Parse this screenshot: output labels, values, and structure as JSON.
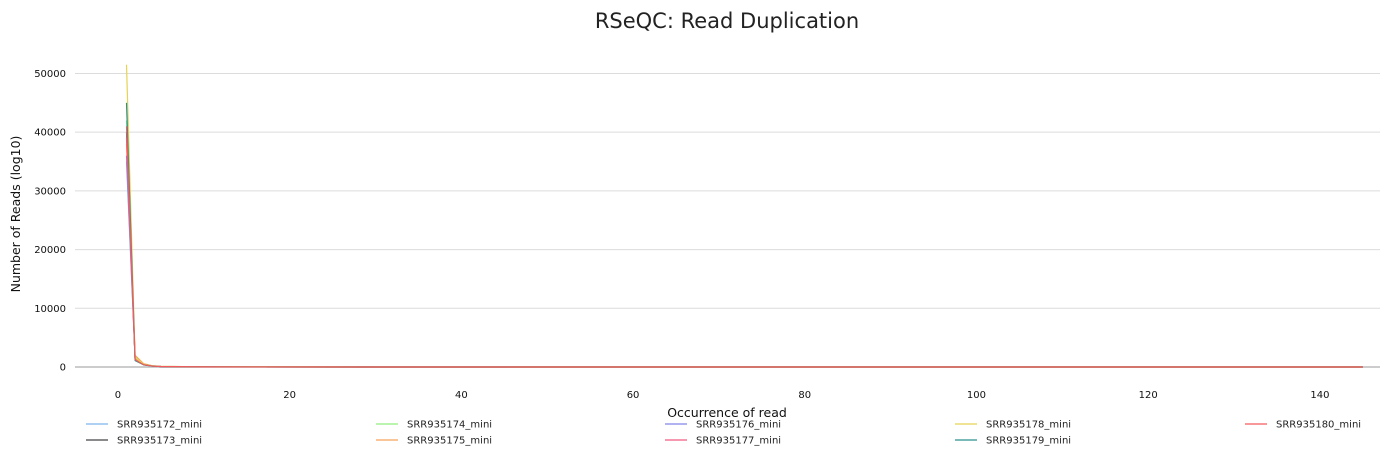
{
  "chart_data": {
    "type": "line",
    "title": "RSeQC: Read Duplication",
    "xlabel": "Occurrence of read",
    "ylabel": "Number of Reads (log10)",
    "xlim": [
      -5,
      147
    ],
    "ylim": [
      0,
      54000
    ],
    "x_ticks": [
      0,
      20,
      40,
      60,
      80,
      100,
      120,
      140
    ],
    "y_ticks": [
      0,
      10000,
      20000,
      30000,
      40000,
      50000
    ],
    "grid": true,
    "legend_position": "bottom",
    "series": [
      {
        "name": "SRR935172_mini",
        "color": "#7cb5ec",
        "x": [
          1,
          2,
          3,
          4,
          5,
          10,
          30,
          60,
          100,
          145
        ],
        "values": [
          35000,
          1500,
          450,
          180,
          90,
          20,
          5,
          2,
          1,
          0
        ]
      },
      {
        "name": "SRR935173_mini",
        "color": "#434348",
        "x": [
          1,
          2,
          3,
          4,
          5,
          10,
          30,
          60,
          100,
          145
        ],
        "values": [
          40000,
          1200,
          380,
          160,
          80,
          18,
          4,
          2,
          1,
          0
        ]
      },
      {
        "name": "SRR935174_mini",
        "color": "#90ed7d",
        "x": [
          1,
          2,
          3,
          4,
          5,
          10,
          30,
          60,
          100,
          145
        ],
        "values": [
          42000,
          1800,
          500,
          200,
          100,
          22,
          5,
          2,
          1,
          0
        ]
      },
      {
        "name": "SRR935175_mini",
        "color": "#f7a35c",
        "x": [
          1,
          2,
          3,
          4,
          5,
          10,
          30,
          60,
          100,
          145
        ],
        "values": [
          38000,
          2000,
          550,
          220,
          110,
          24,
          6,
          2,
          1,
          0
        ]
      },
      {
        "name": "SRR935176_mini",
        "color": "#8085e9",
        "x": [
          1,
          2,
          3,
          4,
          5,
          10,
          30,
          60,
          100,
          145
        ],
        "values": [
          36000,
          1400,
          420,
          170,
          85,
          19,
          4,
          2,
          1,
          0
        ]
      },
      {
        "name": "SRR935177_mini",
        "color": "#f15c80",
        "x": [
          1,
          2,
          3,
          4,
          5,
          10,
          30,
          60,
          100,
          145
        ],
        "values": [
          39000,
          1300,
          400,
          165,
          82,
          18,
          4,
          2,
          1,
          0
        ]
      },
      {
        "name": "SRR935178_mini",
        "color": "#e4d354",
        "x": [
          1,
          2,
          3,
          4,
          5,
          10,
          30,
          60,
          100,
          145
        ],
        "values": [
          51500,
          1600,
          470,
          190,
          95,
          21,
          5,
          2,
          1,
          0
        ]
      },
      {
        "name": "SRR935179_mini",
        "color": "#2b908f",
        "x": [
          1,
          2,
          3,
          4,
          5,
          10,
          30,
          60,
          100,
          145
        ],
        "values": [
          45000,
          1100,
          360,
          150,
          75,
          17,
          4,
          2,
          1,
          0
        ]
      },
      {
        "name": "SRR935180_mini",
        "color": "#f45b5b",
        "x": [
          1,
          2,
          3,
          4,
          5,
          10,
          30,
          60,
          100,
          145
        ],
        "values": [
          41000,
          1250,
          390,
          160,
          80,
          18,
          4,
          2,
          1,
          0
        ]
      }
    ]
  }
}
